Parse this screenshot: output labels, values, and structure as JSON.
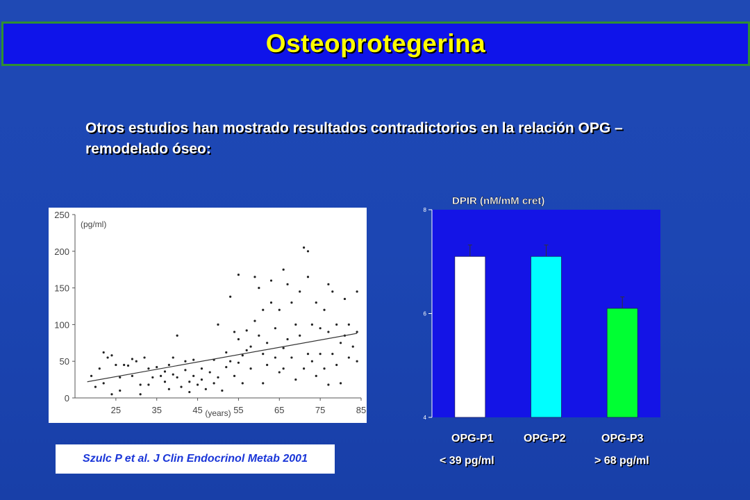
{
  "slide": {
    "title": "Osteoprotegerina",
    "intro": "Otros estudios han mostrado resultados contradictorios en la relación OPG – remodelado óseo:",
    "citation": "Szulc P et al. J Clin Endocrinol Metab 2001"
  },
  "colors": {
    "background": "#1c46b3",
    "title_bar": "#0f14ea",
    "title_text": "#ffff00",
    "title_border": "#2f8f32",
    "plot_area": "#1414e6"
  },
  "chart_data": [
    {
      "type": "scatter",
      "xlabel": "(years)",
      "ylabel": "(pg/ml)",
      "xlim": [
        15,
        85
      ],
      "ylim": [
        0,
        250
      ],
      "xticks": [
        "25",
        "35",
        "45",
        "55",
        "65",
        "75",
        "85"
      ],
      "yticks": [
        "0",
        "50",
        "100",
        "150",
        "200",
        "250"
      ],
      "grid": false,
      "trendline": {
        "x": [
          18,
          84
        ],
        "y": [
          22,
          88
        ]
      },
      "points": [
        [
          19,
          30
        ],
        [
          20,
          15
        ],
        [
          21,
          40
        ],
        [
          22,
          62
        ],
        [
          22,
          20
        ],
        [
          23,
          55
        ],
        [
          24,
          58
        ],
        [
          24,
          5
        ],
        [
          25,
          45
        ],
        [
          26,
          28
        ],
        [
          26,
          10
        ],
        [
          27,
          45
        ],
        [
          28,
          44
        ],
        [
          29,
          53
        ],
        [
          29,
          30
        ],
        [
          30,
          50
        ],
        [
          31,
          18
        ],
        [
          31,
          5
        ],
        [
          32,
          55
        ],
        [
          33,
          18
        ],
        [
          33,
          40
        ],
        [
          34,
          28
        ],
        [
          35,
          42
        ],
        [
          36,
          30
        ],
        [
          37,
          36
        ],
        [
          37,
          22
        ],
        [
          38,
          12
        ],
        [
          38,
          45
        ],
        [
          39,
          32
        ],
        [
          39,
          55
        ],
        [
          40,
          28
        ],
        [
          40,
          85
        ],
        [
          41,
          15
        ],
        [
          42,
          38
        ],
        [
          42,
          50
        ],
        [
          43,
          22
        ],
        [
          43,
          8
        ],
        [
          44,
          52
        ],
        [
          44,
          30
        ],
        [
          45,
          18
        ],
        [
          46,
          25
        ],
        [
          46,
          40
        ],
        [
          47,
          12
        ],
        [
          48,
          35
        ],
        [
          49,
          52
        ],
        [
          49,
          20
        ],
        [
          50,
          100
        ],
        [
          50,
          28
        ],
        [
          51,
          10
        ],
        [
          52,
          42
        ],
        [
          52,
          62
        ],
        [
          53,
          50
        ],
        [
          53,
          138
        ],
        [
          54,
          90
        ],
        [
          54,
          30
        ],
        [
          55,
          80
        ],
        [
          55,
          168
        ],
        [
          55,
          48
        ],
        [
          56,
          58
        ],
        [
          56,
          20
        ],
        [
          57,
          92
        ],
        [
          57,
          65
        ],
        [
          58,
          70
        ],
        [
          58,
          40
        ],
        [
          59,
          105
        ],
        [
          59,
          165
        ],
        [
          60,
          150
        ],
        [
          60,
          85
        ],
        [
          61,
          120
        ],
        [
          61,
          60
        ],
        [
          61,
          20
        ],
        [
          62,
          75
        ],
        [
          62,
          45
        ],
        [
          63,
          130
        ],
        [
          63,
          160
        ],
        [
          64,
          95
        ],
        [
          64,
          55
        ],
        [
          65,
          35
        ],
        [
          65,
          120
        ],
        [
          66,
          68
        ],
        [
          66,
          40
        ],
        [
          66,
          175
        ],
        [
          67,
          80
        ],
        [
          67,
          155
        ],
        [
          68,
          130
        ],
        [
          68,
          55
        ],
        [
          69,
          100
        ],
        [
          69,
          25
        ],
        [
          70,
          145
        ],
        [
          70,
          85
        ],
        [
          71,
          40
        ],
        [
          71,
          205
        ],
        [
          72,
          60
        ],
        [
          72,
          165
        ],
        [
          72,
          200
        ],
        [
          73,
          100
        ],
        [
          73,
          50
        ],
        [
          74,
          130
        ],
        [
          74,
          30
        ],
        [
          75,
          95
        ],
        [
          75,
          60
        ],
        [
          76,
          120
        ],
        [
          76,
          40
        ],
        [
          77,
          155
        ],
        [
          77,
          90
        ],
        [
          77,
          18
        ],
        [
          78,
          60
        ],
        [
          78,
          145
        ],
        [
          79,
          100
        ],
        [
          79,
          45
        ],
        [
          80,
          75
        ],
        [
          80,
          20
        ],
        [
          81,
          135
        ],
        [
          81,
          85
        ],
        [
          82,
          55
        ],
        [
          82,
          100
        ],
        [
          83,
          70
        ],
        [
          84,
          145
        ],
        [
          84,
          50
        ],
        [
          84,
          90
        ]
      ]
    },
    {
      "type": "bar",
      "title": "DPIR (nM/mM cret)",
      "categories": [
        "OPG-P1",
        "OPG-P2",
        "OPG-P3"
      ],
      "sublabels": [
        "< 39 pg/ml",
        "",
        "> 68 pg/ml"
      ],
      "values": [
        7.1,
        7.1,
        6.1
      ],
      "errors": [
        0.22,
        0.22,
        0.22
      ],
      "bar_colors": [
        "#ffffff",
        "#00ffff",
        "#00ff33"
      ],
      "ylim": [
        4,
        8
      ],
      "yticks": [
        "4",
        "6",
        "8"
      ]
    }
  ]
}
